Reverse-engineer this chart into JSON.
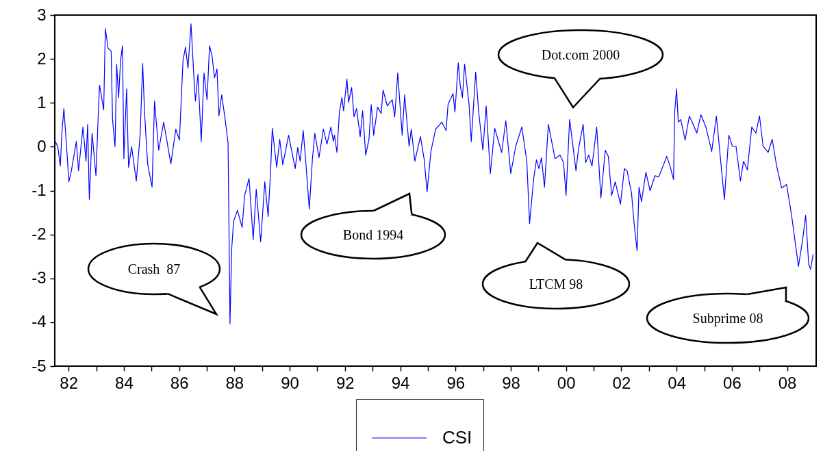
{
  "chart_data": {
    "type": "line",
    "x": [
      1981.52,
      1981.61,
      1981.7,
      1981.76,
      1981.83,
      1981.92,
      1982.01,
      1982.1,
      1982.28,
      1982.36,
      1982.52,
      1982.63,
      1982.69,
      1982.75,
      1982.85,
      1982.99,
      1983.08,
      1983.12,
      1983.27,
      1983.33,
      1983.43,
      1983.54,
      1983.59,
      1983.68,
      1983.74,
      1983.81,
      1983.88,
      1983.95,
      1984.0,
      1984.1,
      1984.17,
      1984.28,
      1984.45,
      1984.59,
      1984.68,
      1984.75,
      1984.86,
      1985.02,
      1985.11,
      1985.26,
      1985.44,
      1985.7,
      1985.88,
      1986.01,
      1986.14,
      1986.23,
      1986.32,
      1986.43,
      1986.55,
      1986.59,
      1986.68,
      1986.8,
      1986.9,
      1987.01,
      1987.1,
      1987.19,
      1987.28,
      1987.37,
      1987.44,
      1987.54,
      1987.66,
      1987.77,
      1987.84,
      1987.9,
      1987.97,
      1988.11,
      1988.28,
      1988.37,
      1988.53,
      1988.68,
      1988.79,
      1988.95,
      1989.1,
      1989.22,
      1989.31,
      1989.37,
      1989.53,
      1989.64,
      1989.75,
      1989.96,
      1990.2,
      1990.29,
      1990.38,
      1990.49,
      1990.58,
      1990.71,
      1990.82,
      1990.91,
      1991.06,
      1991.22,
      1991.35,
      1991.49,
      1991.58,
      1991.62,
      1991.71,
      1991.8,
      1991.89,
      1991.95,
      1992.07,
      1992.13,
      1992.24,
      1992.33,
      1992.42,
      1992.55,
      1992.64,
      1992.75,
      1992.87,
      1992.95,
      1993.04,
      1993.18,
      1993.31,
      1993.38,
      1993.53,
      1993.71,
      1993.8,
      1993.91,
      1994.07,
      1994.16,
      1994.32,
      1994.4,
      1994.53,
      1994.73,
      1994.87,
      1994.97,
      1995.11,
      1995.28,
      1995.51,
      1995.66,
      1995.73,
      1995.91,
      1995.98,
      1996.1,
      1996.17,
      1996.25,
      1996.33,
      1996.49,
      1996.57,
      1996.73,
      1996.84,
      1996.99,
      1997.11,
      1997.26,
      1997.42,
      1997.67,
      1997.82,
      1998.0,
      1998.18,
      1998.4,
      1998.58,
      1998.68,
      1998.83,
      1998.93,
      1999.02,
      1999.11,
      1999.22,
      1999.36,
      1999.6,
      1999.78,
      1999.91,
      2000.0,
      2000.13,
      2000.36,
      2000.45,
      2000.62,
      2000.71,
      2000.82,
      2000.94,
      2001.11,
      2001.26,
      2001.42,
      2001.53,
      2001.65,
      2001.78,
      2001.97,
      2002.11,
      2002.21,
      2002.37,
      2002.46,
      2002.57,
      2002.64,
      2002.73,
      2002.89,
      2003.04,
      2003.22,
      2003.35,
      2003.51,
      2003.64,
      2003.75,
      2003.89,
      2003.93,
      2004.0,
      2004.06,
      2004.15,
      2004.31,
      2004.46,
      2004.6,
      2004.73,
      2004.88,
      2005.06,
      2005.27,
      2005.44,
      2005.58,
      2005.73,
      2005.89,
      2006.02,
      2006.15,
      2006.31,
      2006.42,
      2006.56,
      2006.72,
      2006.87,
      2007.0,
      2007.13,
      2007.31,
      2007.46,
      2007.62,
      2007.8,
      2007.98,
      2008.16,
      2008.41,
      2008.56,
      2008.67,
      2008.78,
      2008.85,
      2008.94
    ],
    "series": [
      {
        "name": "CSI",
        "color": "#0000ff",
        "values": [
          0.12,
          0.0,
          -0.44,
          0.34,
          0.87,
          0.06,
          -0.8,
          -0.55,
          0.12,
          -0.55,
          0.45,
          -0.33,
          0.51,
          -1.2,
          0.31,
          -0.66,
          0.84,
          1.4,
          0.84,
          2.69,
          2.24,
          2.18,
          0.62,
          0.0,
          1.88,
          1.12,
          1.96,
          2.3,
          -0.27,
          1.32,
          -0.47,
          0.0,
          -0.78,
          0.28,
          1.9,
          0.76,
          -0.39,
          -0.92,
          1.04,
          -0.08,
          0.56,
          -0.39,
          0.4,
          0.15,
          1.96,
          2.27,
          1.79,
          2.8,
          1.4,
          1.04,
          1.65,
          0.12,
          1.68,
          1.07,
          2.3,
          2.07,
          1.57,
          1.77,
          0.7,
          1.18,
          0.65,
          0.09,
          -4.04,
          -2.34,
          -1.7,
          -1.45,
          -1.84,
          -1.11,
          -0.72,
          -2.12,
          -0.97,
          -2.17,
          -0.8,
          -1.59,
          -0.55,
          0.42,
          -0.47,
          0.17,
          -0.41,
          0.26,
          -0.5,
          -0.02,
          -0.33,
          0.37,
          -0.33,
          -1.42,
          -0.3,
          0.31,
          -0.25,
          0.4,
          0.06,
          0.45,
          0.12,
          0.26,
          -0.13,
          0.79,
          1.12,
          0.82,
          1.54,
          1.01,
          1.35,
          0.68,
          0.87,
          0.23,
          0.82,
          -0.19,
          0.17,
          0.96,
          0.26,
          0.9,
          0.76,
          1.29,
          0.93,
          1.07,
          0.68,
          1.68,
          0.26,
          1.18,
          0.01,
          0.4,
          -0.33,
          0.23,
          -0.3,
          -1.03,
          -0.11,
          0.4,
          0.56,
          0.37,
          0.96,
          1.21,
          0.79,
          1.91,
          1.4,
          1.12,
          1.88,
          0.96,
          0.12,
          1.7,
          0.79,
          -0.08,
          0.93,
          -0.61,
          0.42,
          -0.13,
          0.59,
          -0.61,
          0.01,
          0.45,
          -0.33,
          -1.75,
          -0.72,
          -0.3,
          -0.5,
          -0.25,
          -0.92,
          0.51,
          -0.27,
          -0.19,
          -0.36,
          -1.11,
          0.62,
          -0.55,
          -0.05,
          0.51,
          -0.36,
          -0.19,
          -0.44,
          0.45,
          -1.17,
          -0.08,
          -0.22,
          -1.11,
          -0.8,
          -1.31,
          -0.5,
          -0.55,
          -1.06,
          -1.73,
          -2.37,
          -0.92,
          -1.25,
          -0.58,
          -1.0,
          -0.66,
          -0.69,
          -0.44,
          -0.22,
          -0.41,
          -0.75,
          0.79,
          1.32,
          0.56,
          0.62,
          0.15,
          0.7,
          0.51,
          0.31,
          0.73,
          0.45,
          -0.11,
          0.7,
          -0.22,
          -1.2,
          0.26,
          0.01,
          0.01,
          -0.78,
          -0.33,
          -0.53,
          0.45,
          0.31,
          0.7,
          0.01,
          -0.13,
          0.17,
          -0.44,
          -0.94,
          -0.86,
          -1.56,
          -2.73,
          -2.12,
          -1.56,
          -2.68,
          -2.79,
          -2.45
        ]
      }
    ],
    "xlim": [
      1981.5,
      2009.05
    ],
    "xticks": [
      {
        "value": 1982,
        "label": "82"
      },
      {
        "value": 1983,
        "label": null
      },
      {
        "value": 1984,
        "label": "84"
      },
      {
        "value": 1985,
        "label": null
      },
      {
        "value": 1986,
        "label": "86"
      },
      {
        "value": 1987,
        "label": null
      },
      {
        "value": 1988,
        "label": "88"
      },
      {
        "value": 1989,
        "label": null
      },
      {
        "value": 1990,
        "label": "90"
      },
      {
        "value": 1991,
        "label": null
      },
      {
        "value": 1992,
        "label": "92"
      },
      {
        "value": 1993,
        "label": null
      },
      {
        "value": 1994,
        "label": "94"
      },
      {
        "value": 1995,
        "label": null
      },
      {
        "value": 1996,
        "label": "96"
      },
      {
        "value": 1997,
        "label": null
      },
      {
        "value": 1998,
        "label": "98"
      },
      {
        "value": 1999,
        "label": null
      },
      {
        "value": 2000,
        "label": "00"
      },
      {
        "value": 2001,
        "label": null
      },
      {
        "value": 2002,
        "label": "02"
      },
      {
        "value": 2003,
        "label": null
      },
      {
        "value": 2004,
        "label": "04"
      },
      {
        "value": 2005,
        "label": null
      },
      {
        "value": 2006,
        "label": "06"
      },
      {
        "value": 2007,
        "label": null
      },
      {
        "value": 2008,
        "label": "08"
      }
    ],
    "ylim": [
      -5,
      3
    ],
    "yticks": [
      -5,
      -4,
      -3,
      -2,
      -1,
      0,
      1,
      2,
      3
    ],
    "grid": false,
    "legend": "bottom",
    "line_style": "solid",
    "marker": "none",
    "annotations": [
      "Crash  87",
      "Bond 1994",
      "Dot.com 2000",
      "LTCM 98",
      "Subprime 08"
    ]
  }
}
